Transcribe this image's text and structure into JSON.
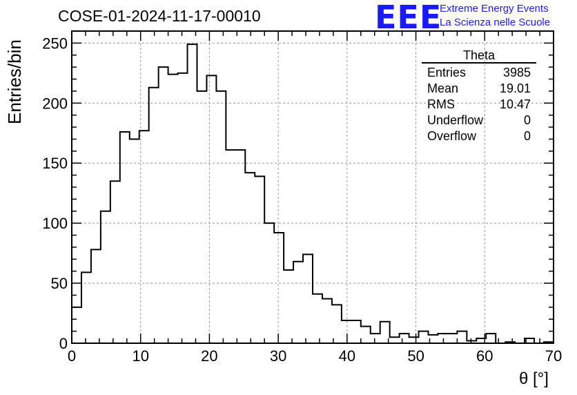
{
  "header": {
    "title": "COSE-01-2024-11-17-00010",
    "logo_text": "EEE",
    "brand_line1": "Extreme Energy Events",
    "brand_line2": "La Scienza nelle Scuole"
  },
  "stats_box": {
    "title": "Theta",
    "rows": [
      {
        "label": "Entries",
        "value": "3985"
      },
      {
        "label": "Mean",
        "value": "19.01"
      },
      {
        "label": "RMS",
        "value": "10.47"
      },
      {
        "label": "Underflow",
        "value": "0"
      },
      {
        "label": "Overflow",
        "value": "0"
      }
    ]
  },
  "colors": {
    "brand_blue": "#1a1aff",
    "line": "#000000",
    "grid": "#999999"
  },
  "chart_data": {
    "type": "bar",
    "histogram": true,
    "bin_width": 1.4,
    "xlim": [
      0,
      70
    ],
    "ylim": [
      0,
      260
    ],
    "xlabel": "θ [°]",
    "ylabel": "Entries/bin",
    "xticks": [
      0,
      10,
      20,
      30,
      40,
      50,
      60,
      70
    ],
    "yticks": [
      0,
      50,
      100,
      150,
      200,
      250
    ],
    "grid": true,
    "values": [
      30,
      59,
      78,
      110,
      135,
      176,
      170,
      177,
      213,
      230,
      224,
      225,
      249,
      210,
      223,
      210,
      161,
      161,
      142,
      139,
      100,
      92,
      61,
      68,
      74,
      41,
      37,
      32,
      19,
      19,
      14,
      8,
      18,
      5,
      8,
      5,
      10,
      7,
      8,
      8,
      10,
      2,
      4,
      8,
      0,
      1,
      0,
      4,
      0,
      1
    ]
  }
}
